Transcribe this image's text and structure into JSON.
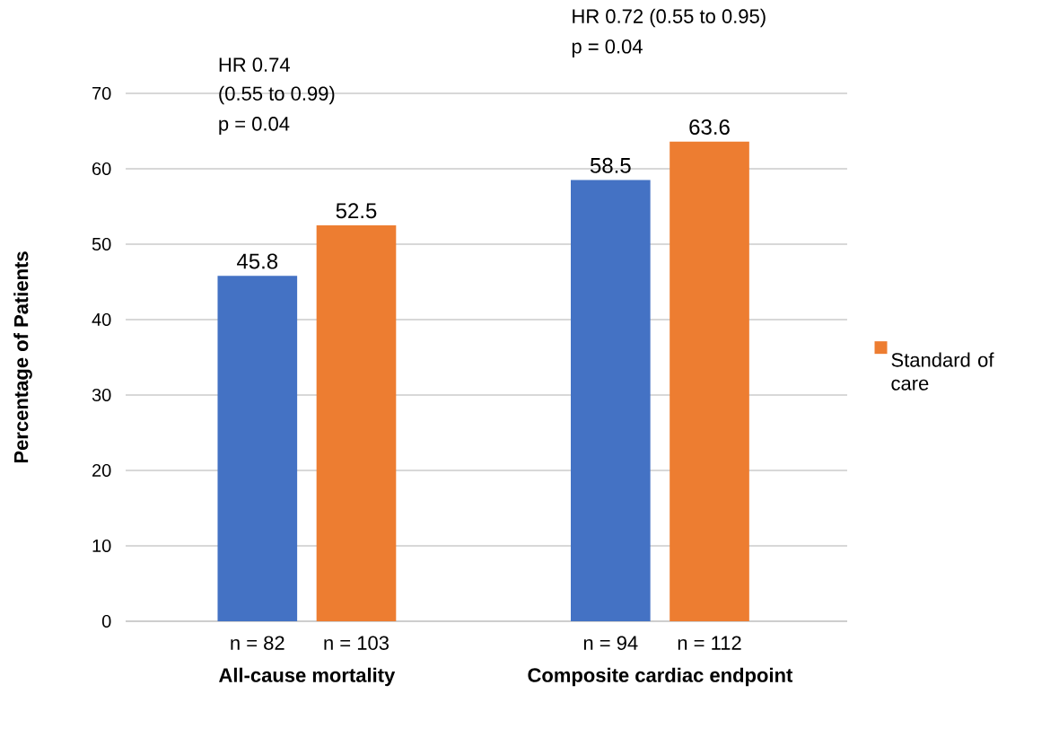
{
  "chart_data": {
    "type": "bar",
    "ylabel": "Percentage of Patients",
    "categories": [
      "All-cause mortality",
      "Composite cardiac endpoint"
    ],
    "series": [
      {
        "color": "#4472c4",
        "values": [
          45.8,
          58.5
        ]
      },
      {
        "name": "Standard of care",
        "color": "#ed7d31",
        "values": [
          52.5,
          63.6
        ]
      }
    ],
    "ylim": [
      0,
      70
    ],
    "yticks": [
      0,
      10,
      20,
      30,
      40,
      50,
      60,
      70
    ],
    "grid": "y",
    "legend": "right",
    "data_labels": true,
    "annotations": [
      "n = 82",
      "n = 103",
      "n = 94",
      "n = 112",
      "HR 0.74",
      "(0.55 to 0.99)",
      "p = 0.04",
      "HR 0.72 (0.55 to 0.95)",
      "p = 0.04"
    ]
  }
}
